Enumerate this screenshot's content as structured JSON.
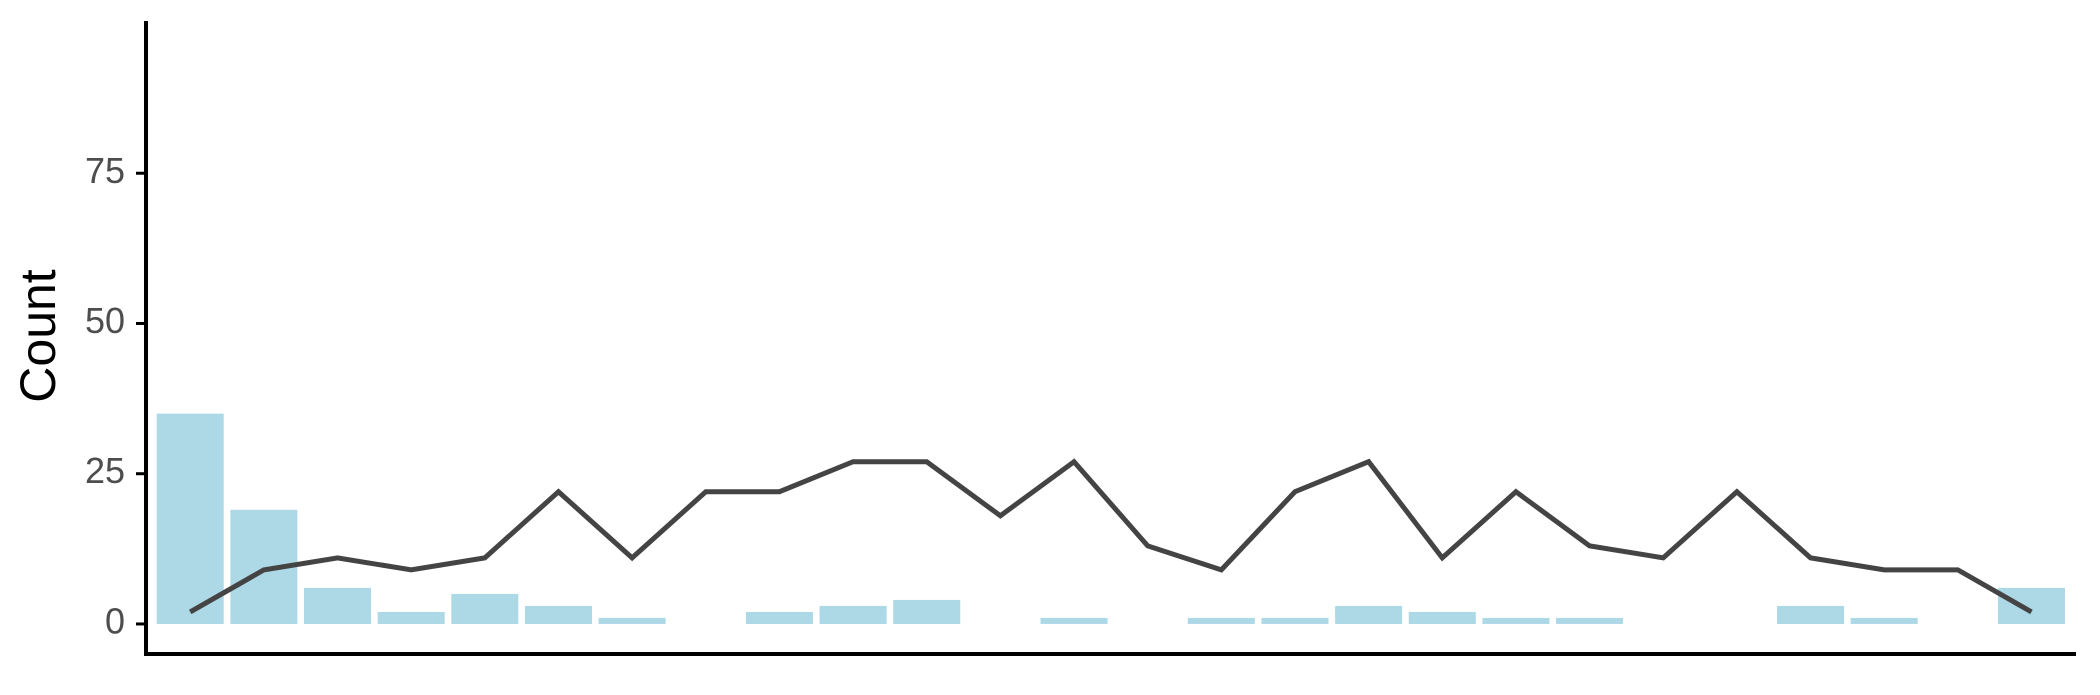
{
  "chart_data": {
    "type": "combo",
    "y_label": "Count",
    "categories": [
      null,
      null,
      null,
      null,
      null,
      null,
      null,
      null,
      null,
      null,
      null,
      null,
      null,
      null,
      null,
      null,
      null,
      null,
      null,
      null,
      null,
      null,
      null,
      null,
      null,
      null
    ],
    "series": [
      {
        "type": "bar",
        "color": "#add8e6",
        "values": [
          35,
          19,
          6,
          2,
          5,
          3,
          1,
          0,
          2,
          3,
          4,
          0,
          1,
          0,
          1,
          1,
          3,
          2,
          1,
          1,
          0,
          0,
          3,
          1,
          0,
          6
        ]
      },
      {
        "type": "line",
        "color": "#444444",
        "values": [
          2,
          9,
          11,
          9,
          11,
          22,
          11,
          22,
          22,
          27,
          27,
          18,
          27,
          13,
          9,
          22,
          27,
          11,
          22,
          13,
          11,
          22,
          11,
          9,
          9,
          2
        ]
      }
    ],
    "ylim": [
      -5,
      100
    ],
    "yticks": [
      0,
      25,
      50,
      75
    ],
    "grid": false
  }
}
